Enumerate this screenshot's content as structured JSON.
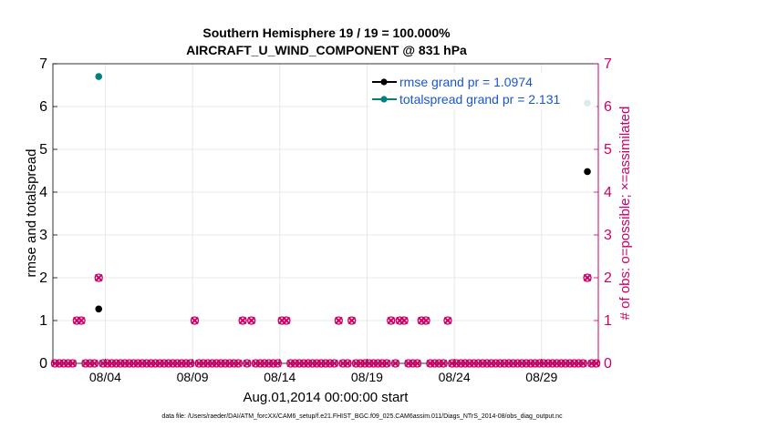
{
  "chart_data": {
    "type": "scatter",
    "title_line1": "Southern Hemisphere 19 / 19 = 100.000%",
    "title_line2": "AIRCRAFT_U_WIND_COMPONENT @ 831 hPa",
    "ylabel_left": "rmse and totalspread",
    "ylabel_right": "# of obs: o=possible; ×=assimilated",
    "xlabel": "Aug.01,2014 00:00:00 start",
    "footer": "data file: /Users/raeder/DAI/ATM_forcXX/CAM6_setup/f.e21.FHIST_BGC.f09_025.CAM6assim.011/Diags_NTrS_2014-08/obs_diag_output.nc",
    "xlim": [
      1,
      32.25
    ],
    "ylim_left": [
      0,
      7
    ],
    "ylim_right": [
      0,
      7
    ],
    "y_ticks": [
      0,
      1,
      2,
      3,
      4,
      5,
      6,
      7
    ],
    "x_ticks": [
      {
        "day": 4,
        "label": "08/04"
      },
      {
        "day": 9,
        "label": "08/09"
      },
      {
        "day": 14,
        "label": "08/14"
      },
      {
        "day": 19,
        "label": "08/19"
      },
      {
        "day": 24,
        "label": "08/24"
      },
      {
        "day": 29,
        "label": "08/29"
      }
    ],
    "legend": [
      {
        "name": "rmse grand pr = 1.0974",
        "color": "#000000"
      },
      {
        "name": "totalspread grand pr = 2.131",
        "color": "#008080"
      }
    ],
    "series": [
      {
        "name": "rmse",
        "color": "#000000",
        "points": [
          [
            3.625,
            1.27
          ],
          [
            31.625,
            4.48
          ]
        ]
      },
      {
        "name": "totalspread",
        "color": "#008080",
        "points": [
          [
            3.625,
            6.7
          ],
          [
            31.625,
            6.08
          ]
        ]
      }
    ],
    "obs_counts": {
      "color": "#cc0066",
      "start": 1.125,
      "step": 0.25,
      "nonzero": [
        {
          "x": 2.375,
          "v": 1
        },
        {
          "x": 2.625,
          "v": 1
        },
        {
          "x": 3.625,
          "v": 2
        },
        {
          "x": 9.125,
          "v": 1
        },
        {
          "x": 11.875,
          "v": 1
        },
        {
          "x": 12.375,
          "v": 1
        },
        {
          "x": 14.125,
          "v": 1
        },
        {
          "x": 14.375,
          "v": 1
        },
        {
          "x": 17.375,
          "v": 1
        },
        {
          "x": 18.125,
          "v": 1
        },
        {
          "x": 20.375,
          "v": 1
        },
        {
          "x": 20.875,
          "v": 1
        },
        {
          "x": 21.125,
          "v": 1
        },
        {
          "x": 22.125,
          "v": 1
        },
        {
          "x": 22.375,
          "v": 1
        },
        {
          "x": 23.625,
          "v": 1
        },
        {
          "x": 31.625,
          "v": 2
        }
      ]
    }
  }
}
